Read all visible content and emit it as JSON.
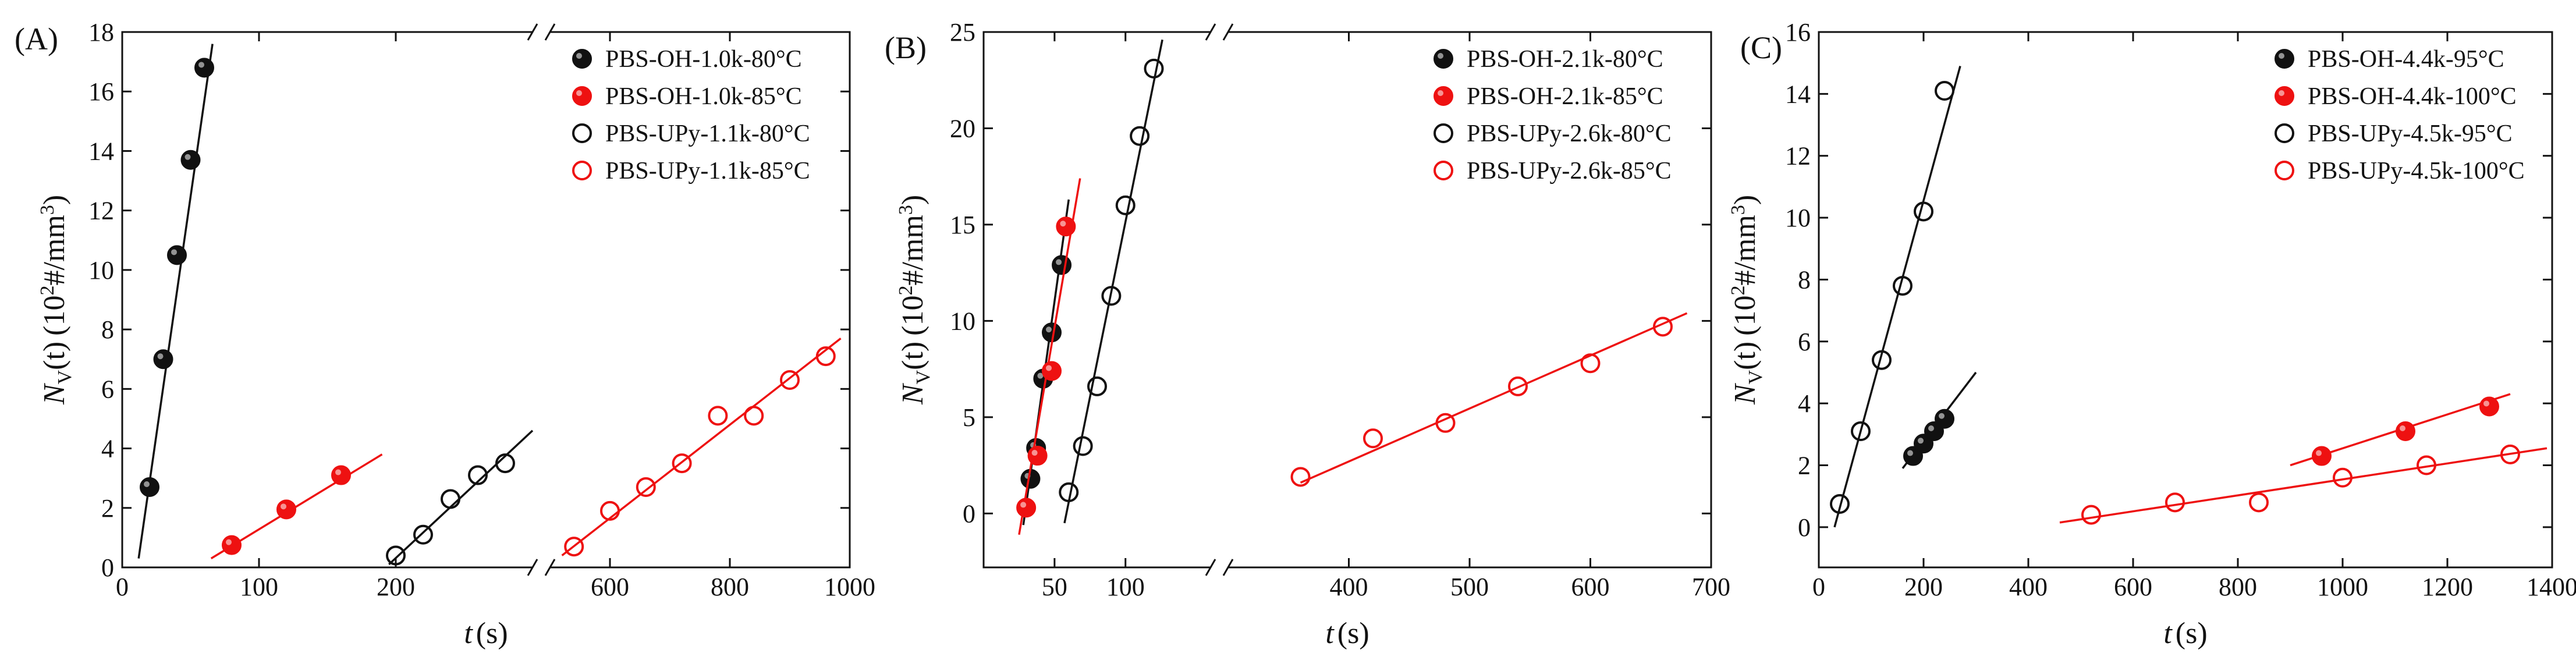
{
  "figure": {
    "panels": [
      {
        "id": "A",
        "label": "(A)"
      },
      {
        "id": "B",
        "label": "(B)"
      },
      {
        "id": "C",
        "label": "(C)"
      }
    ]
  },
  "colors": {
    "black": "#111111",
    "red": "#ee1111",
    "axis": "#111111"
  },
  "chart_data": [
    {
      "type": "scatter",
      "panel": "A",
      "panel_label": "(A)",
      "xlabel_var": "t",
      "xlabel_unit": "(s)",
      "ylabel_var": "N",
      "ylabel_sub": "V",
      "ylabel_arg": "(t)",
      "ylabel_unit": "(10",
      "ylabel_exp": "2",
      "ylabel_tail": "#/mm",
      "ylabel_exp2": "3",
      "ylabel_close": ")",
      "broken_x_axis": true,
      "x_segments": [
        {
          "range": [
            0,
            300
          ],
          "ticks": [
            0,
            100,
            200
          ]
        },
        {
          "range": [
            500,
            1000
          ],
          "ticks": [
            600,
            800,
            1000
          ]
        }
      ],
      "ylim": [
        0,
        18
      ],
      "yticks": [
        0,
        2,
        4,
        6,
        8,
        10,
        12,
        14,
        16,
        18
      ],
      "legend_position": "top-right",
      "series": [
        {
          "name": "PBS-OH-1.0k-80°C",
          "color": "black",
          "marker": "filled",
          "points": [
            [
              20,
              2.7
            ],
            [
              30,
              7.0
            ],
            [
              40,
              10.5
            ],
            [
              50,
              13.7
            ],
            [
              60,
              16.8
            ]
          ],
          "fit": [
            [
              12,
              0.3
            ],
            [
              66,
              17.6
            ]
          ]
        },
        {
          "name": "PBS-OH-1.0k-85°C",
          "color": "red",
          "marker": "filled",
          "points": [
            [
              80,
              0.75
            ],
            [
              120,
              1.95
            ],
            [
              160,
              3.1
            ]
          ],
          "fit": [
            [
              65,
              0.3
            ],
            [
              190,
              3.8
            ]
          ]
        },
        {
          "name": "PBS-UPy-1.1k-80°C",
          "color": "black",
          "marker": "open",
          "points": [
            [
              200,
              0.4
            ],
            [
              220,
              1.1
            ],
            [
              240,
              2.3
            ],
            [
              260,
              3.1
            ],
            [
              280,
              3.5
            ]
          ],
          "fit": [
            [
              195,
              0.1
            ],
            [
              300,
              4.6
            ]
          ]
        },
        {
          "name": "PBS-UPy-1.1k-85°C",
          "color": "red",
          "marker": "open",
          "points": [
            [
              540,
              0.7
            ],
            [
              600,
              1.9
            ],
            [
              660,
              2.7
            ],
            [
              720,
              3.5
            ],
            [
              780,
              5.1
            ],
            [
              840,
              5.1
            ],
            [
              900,
              6.3
            ],
            [
              960,
              7.1
            ]
          ],
          "fit": [
            [
              520,
              0.4
            ],
            [
              985,
              7.7
            ]
          ]
        }
      ]
    },
    {
      "type": "scatter",
      "panel": "B",
      "panel_label": "(B)",
      "xlabel_var": "t",
      "xlabel_unit": "(s)",
      "ylabel_var": "N",
      "ylabel_sub": "V",
      "ylabel_arg": "(t)",
      "ylabel_unit": "(10",
      "ylabel_exp": "2",
      "ylabel_tail": "#/mm",
      "ylabel_exp2": "3",
      "ylabel_close": ")",
      "broken_x_axis": true,
      "x_segments": [
        {
          "range": [
            0,
            160
          ],
          "ticks": [
            50,
            100
          ]
        },
        {
          "range": [
            300,
            700
          ],
          "ticks": [
            400,
            500,
            600,
            700
          ]
        }
      ],
      "ylim": [
        -2.8,
        25
      ],
      "yticks": [
        0,
        5,
        10,
        15,
        20,
        25
      ],
      "legend_position": "top-right",
      "series": [
        {
          "name": "PBS-OH-2.1k-80°C",
          "color": "black",
          "marker": "filled",
          "points": [
            [
              33,
              1.8
            ],
            [
              37,
              3.4
            ],
            [
              42,
              7.0
            ],
            [
              48,
              9.4
            ],
            [
              55,
              12.9
            ]
          ],
          "fit": [
            [
              28,
              -0.6
            ],
            [
              60,
              16.3
            ]
          ]
        },
        {
          "name": "PBS-OH-2.1k-85°C",
          "color": "red",
          "marker": "filled",
          "points": [
            [
              30,
              0.3
            ],
            [
              38,
              3.0
            ],
            [
              48,
              7.4
            ],
            [
              58,
              14.9
            ]
          ],
          "fit": [
            [
              25,
              -1.1
            ],
            [
              68,
              17.4
            ]
          ]
        },
        {
          "name": "PBS-UPy-2.6k-80°C",
          "color": "black",
          "marker": "open",
          "points": [
            [
              60,
              1.1
            ],
            [
              70,
              3.5
            ],
            [
              80,
              6.6
            ],
            [
              90,
              11.3
            ],
            [
              100,
              16.0
            ],
            [
              110,
              19.6
            ],
            [
              120,
              23.1
            ]
          ],
          "fit": [
            [
              57,
              -0.5
            ],
            [
              126,
              24.6
            ]
          ]
        },
        {
          "name": "PBS-UPy-2.6k-85°C",
          "color": "red",
          "marker": "open",
          "points": [
            [
              360,
              1.9
            ],
            [
              420,
              3.9
            ],
            [
              480,
              4.7
            ],
            [
              540,
              6.6
            ],
            [
              600,
              7.8
            ],
            [
              660,
              9.7
            ]
          ],
          "fit": [
            [
              360,
              1.6
            ],
            [
              680,
              10.4
            ]
          ]
        }
      ]
    },
    {
      "type": "scatter",
      "panel": "C",
      "panel_label": "(C)",
      "xlabel_var": "t",
      "xlabel_unit": "(s)",
      "ylabel_var": "N",
      "ylabel_sub": "V",
      "ylabel_arg": "(t)",
      "ylabel_unit": "(10",
      "ylabel_exp": "2",
      "ylabel_tail": "#/mm",
      "ylabel_exp2": "3",
      "ylabel_close": ")",
      "broken_x_axis": false,
      "xlim": [
        0,
        1400
      ],
      "xticks": [
        0,
        200,
        400,
        600,
        800,
        1000,
        1200,
        1400
      ],
      "ylim": [
        -1.3,
        16
      ],
      "yticks": [
        0,
        2,
        4,
        6,
        8,
        10,
        12,
        14,
        16
      ],
      "legend_position": "top-right",
      "series": [
        {
          "name": "PBS-OH-4.4k-95°C",
          "color": "black",
          "marker": "filled",
          "points": [
            [
              180,
              2.3
            ],
            [
              200,
              2.7
            ],
            [
              220,
              3.1
            ],
            [
              240,
              3.5
            ]
          ],
          "fit": [
            [
              160,
              1.9
            ],
            [
              300,
              5.0
            ]
          ]
        },
        {
          "name": "PBS-OH-4.4k-100°C",
          "color": "red",
          "marker": "filled",
          "points": [
            [
              960,
              2.3
            ],
            [
              1120,
              3.1
            ],
            [
              1280,
              3.9
            ]
          ],
          "fit": [
            [
              900,
              2.0
            ],
            [
              1320,
              4.3
            ]
          ]
        },
        {
          "name": "PBS-UPy-4.5k-95°C",
          "color": "black",
          "marker": "open",
          "points": [
            [
              40,
              0.75
            ],
            [
              80,
              3.1
            ],
            [
              120,
              5.4
            ],
            [
              160,
              7.8
            ],
            [
              200,
              10.2
            ],
            [
              240,
              14.1
            ]
          ],
          "fit": [
            [
              30,
              0.0
            ],
            [
              270,
              14.9
            ]
          ]
        },
        {
          "name": "PBS-UPy-4.5k-100°C",
          "color": "red",
          "marker": "open",
          "points": [
            [
              520,
              0.4
            ],
            [
              680,
              0.8
            ],
            [
              840,
              0.8
            ],
            [
              1000,
              1.6
            ],
            [
              1160,
              2.0
            ],
            [
              1320,
              2.35
            ]
          ],
          "fit": [
            [
              460,
              0.15
            ],
            [
              1390,
              2.55
            ]
          ]
        }
      ]
    }
  ]
}
